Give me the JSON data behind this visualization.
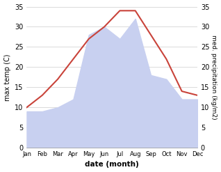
{
  "months": [
    "Jan",
    "Feb",
    "Mar",
    "Apr",
    "May",
    "Jun",
    "Jul",
    "Aug",
    "Sep",
    "Oct",
    "Nov",
    "Dec"
  ],
  "temperature": [
    10,
    13,
    17,
    22,
    27,
    30,
    34,
    34,
    28,
    22,
    14,
    13
  ],
  "precipitation": [
    9,
    9,
    10,
    12,
    28,
    30,
    27,
    32,
    18,
    17,
    12,
    12
  ],
  "temp_color": "#c9433a",
  "precip_fill_color": "#c8d0f0",
  "ylim_left": [
    0,
    35
  ],
  "ylim_right": [
    0,
    35
  ],
  "xlabel": "date (month)",
  "ylabel_left": "max temp (C)",
  "ylabel_right": "med. precipitation (kg/m2)",
  "bg_color": "#ffffff",
  "grid_color": "#cccccc"
}
